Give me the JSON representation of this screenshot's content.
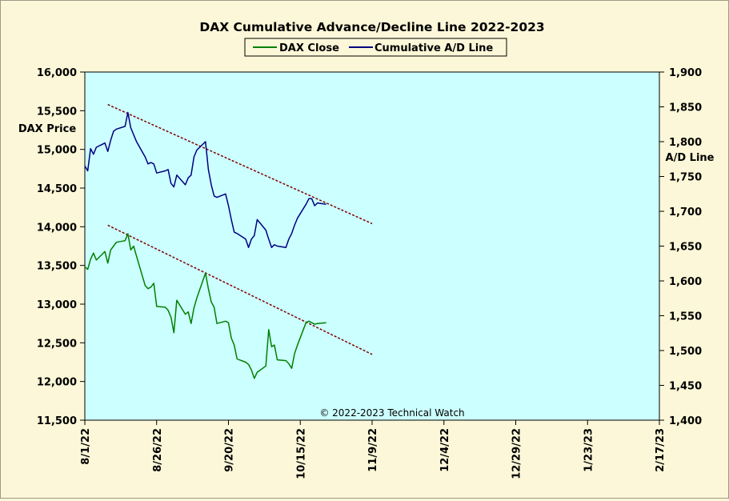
{
  "chart_data": {
    "type": "line",
    "title": "DAX Cumulative Advance/Decline Line 2022-2023",
    "ylabel_left": "DAX Price",
    "ylabel_right": "A/D Line",
    "copyright": "© 2022-2023 Technical Watch",
    "xlim": [
      "8/1/22",
      "2/17/23"
    ],
    "x_ticks": [
      "8/1/22",
      "8/26/22",
      "9/20/22",
      "10/15/22",
      "11/9/22",
      "12/4/22",
      "12/29/22",
      "1/23/23",
      "2/17/23"
    ],
    "ylim_left": [
      11500,
      16000
    ],
    "ylim_right": [
      1400,
      1900
    ],
    "y_ticks_left": [
      "11,500",
      "12,000",
      "12,500",
      "13,000",
      "13,500",
      "14,000",
      "14,500",
      "15,000",
      "15,500",
      "16,000"
    ],
    "y_ticks_right": [
      "1,400",
      "1,450",
      "1,500",
      "1,550",
      "1,600",
      "1,650",
      "1,700",
      "1,750",
      "1,800",
      "1,850",
      "1,900"
    ],
    "legend_placement": "top-center",
    "grid": false,
    "colors": {
      "plot_background": "#ccffff",
      "dax_close": "#008000",
      "ad_line": "#000080",
      "trendline": "#800000"
    },
    "series": [
      {
        "name": "DAX Close",
        "axis": "left",
        "x": [
          "8/1/22",
          "8/2/22",
          "8/3/22",
          "8/4/22",
          "8/5/22",
          "8/8/22",
          "8/9/22",
          "8/10/22",
          "8/11/22",
          "8/12/22",
          "8/15/22",
          "8/16/22",
          "8/17/22",
          "8/18/22",
          "8/19/22",
          "8/22/22",
          "8/23/22",
          "8/24/22",
          "8/25/22",
          "8/26/22",
          "8/29/22",
          "8/30/22",
          "8/31/22",
          "9/1/22",
          "9/2/22",
          "9/5/22",
          "9/6/22",
          "9/7/22",
          "9/8/22",
          "9/9/22",
          "9/12/22",
          "9/13/22",
          "9/14/22",
          "9/15/22",
          "9/16/22",
          "9/19/22",
          "9/20/22",
          "9/21/22",
          "9/22/22",
          "9/23/22",
          "9/26/22",
          "9/27/22",
          "9/28/22",
          "9/29/22",
          "9/30/22",
          "10/3/22",
          "10/4/22",
          "10/5/22",
          "10/6/22",
          "10/7/22",
          "10/10/22",
          "10/11/22",
          "10/12/22",
          "10/13/22",
          "10/14/22",
          "10/17/22",
          "10/18/22",
          "10/19/22",
          "10/20/22",
          "10/21/22",
          "10/24/22"
        ],
        "values": [
          13480,
          13450,
          13580,
          13660,
          13570,
          13680,
          13530,
          13700,
          13750,
          13800,
          13820,
          13910,
          13700,
          13750,
          13620,
          13240,
          13200,
          13220,
          13270,
          12970,
          12960,
          12920,
          12830,
          12630,
          13050,
          12870,
          12900,
          12750,
          12950,
          13080,
          13400,
          13200,
          13030,
          12960,
          12750,
          12780,
          12760,
          12560,
          12470,
          12290,
          12250,
          12220,
          12150,
          12040,
          12120,
          12200,
          12670,
          12450,
          12470,
          12280,
          12270,
          12230,
          12170,
          12360,
          12470,
          12760,
          12780,
          12760,
          12740,
          12750,
          12760
        ]
      },
      {
        "name": "Cumulative A/D Line",
        "axis": "right",
        "x": [
          "8/1/22",
          "8/2/22",
          "8/3/22",
          "8/4/22",
          "8/5/22",
          "8/8/22",
          "8/9/22",
          "8/10/22",
          "8/11/22",
          "8/12/22",
          "8/15/22",
          "8/16/22",
          "8/17/22",
          "8/18/22",
          "8/19/22",
          "8/22/22",
          "8/23/22",
          "8/24/22",
          "8/25/22",
          "8/26/22",
          "8/29/22",
          "8/30/22",
          "8/31/22",
          "9/1/22",
          "9/2/22",
          "9/5/22",
          "9/6/22",
          "9/7/22",
          "9/8/22",
          "9/9/22",
          "9/12/22",
          "9/13/22",
          "9/14/22",
          "9/15/22",
          "9/16/22",
          "9/19/22",
          "9/20/22",
          "9/21/22",
          "9/22/22",
          "9/23/22",
          "9/26/22",
          "9/27/22",
          "9/28/22",
          "9/29/22",
          "9/30/22",
          "10/3/22",
          "10/4/22",
          "10/5/22",
          "10/6/22",
          "10/7/22",
          "10/10/22",
          "10/11/22",
          "10/12/22",
          "10/13/22",
          "10/14/22",
          "10/17/22",
          "10/18/22",
          "10/19/22",
          "10/20/22",
          "10/21/22",
          "10/24/22"
        ],
        "values": [
          1765,
          1758,
          1790,
          1782,
          1792,
          1798,
          1786,
          1802,
          1815,
          1818,
          1822,
          1842,
          1820,
          1810,
          1800,
          1778,
          1768,
          1770,
          1768,
          1755,
          1758,
          1760,
          1740,
          1735,
          1752,
          1738,
          1748,
          1752,
          1778,
          1788,
          1800,
          1760,
          1738,
          1722,
          1720,
          1725,
          1708,
          1688,
          1670,
          1668,
          1660,
          1648,
          1660,
          1665,
          1688,
          1673,
          1660,
          1648,
          1652,
          1650,
          1648,
          1660,
          1668,
          1680,
          1690,
          1710,
          1718,
          1718,
          1708,
          1712,
          1710
        ]
      }
    ],
    "trendlines": [
      {
        "axis": "left",
        "from": {
          "x": "8/9/22",
          "y": 15580
        },
        "to": {
          "x": "11/9/22",
          "y": 14040
        }
      },
      {
        "axis": "left",
        "from": {
          "x": "8/9/22",
          "y": 14020
        },
        "to": {
          "x": "11/9/22",
          "y": 12350
        }
      }
    ]
  }
}
